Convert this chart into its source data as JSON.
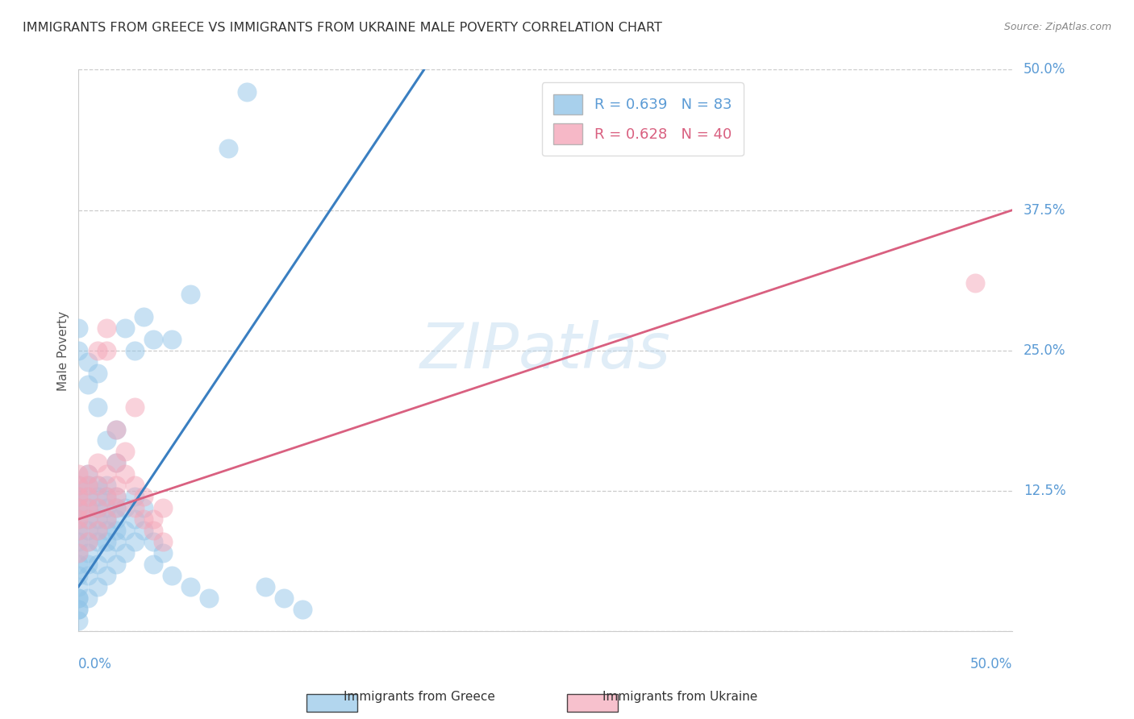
{
  "title": "IMMIGRANTS FROM GREECE VS IMMIGRANTS FROM UKRAINE MALE POVERTY CORRELATION CHART",
  "source": "Source: ZipAtlas.com",
  "ylabel": "Male Poverty",
  "ytick_values": [
    0.0,
    0.125,
    0.25,
    0.375,
    0.5
  ],
  "xlim": [
    0.0,
    0.5
  ],
  "ylim": [
    0.0,
    0.5
  ],
  "greece_color": "#92c5e8",
  "ukraine_color": "#f4a7b9",
  "greece_line_color": "#3a7fc1",
  "ukraine_line_color": "#d96080",
  "greece_line": [
    [
      0.0,
      0.04
    ],
    [
      0.185,
      0.5
    ]
  ],
  "ukraine_line": [
    [
      0.0,
      0.1
    ],
    [
      0.5,
      0.375
    ]
  ],
  "greece_scatter": [
    [
      0.0,
      0.02
    ],
    [
      0.0,
      0.03
    ],
    [
      0.0,
      0.04
    ],
    [
      0.0,
      0.05
    ],
    [
      0.0,
      0.06
    ],
    [
      0.0,
      0.07
    ],
    [
      0.0,
      0.08
    ],
    [
      0.0,
      0.09
    ],
    [
      0.0,
      0.1
    ],
    [
      0.0,
      0.11
    ],
    [
      0.0,
      0.12
    ],
    [
      0.0,
      0.13
    ],
    [
      0.0,
      0.01
    ],
    [
      0.0,
      0.02
    ],
    [
      0.0,
      0.03
    ],
    [
      0.005,
      0.03
    ],
    [
      0.005,
      0.05
    ],
    [
      0.005,
      0.07
    ],
    [
      0.005,
      0.08
    ],
    [
      0.005,
      0.09
    ],
    [
      0.005,
      0.1
    ],
    [
      0.005,
      0.11
    ],
    [
      0.005,
      0.12
    ],
    [
      0.005,
      0.13
    ],
    [
      0.005,
      0.14
    ],
    [
      0.005,
      0.06
    ],
    [
      0.01,
      0.04
    ],
    [
      0.01,
      0.06
    ],
    [
      0.01,
      0.08
    ],
    [
      0.01,
      0.1
    ],
    [
      0.01,
      0.12
    ],
    [
      0.01,
      0.13
    ],
    [
      0.01,
      0.11
    ],
    [
      0.01,
      0.09
    ],
    [
      0.015,
      0.05
    ],
    [
      0.015,
      0.07
    ],
    [
      0.015,
      0.09
    ],
    [
      0.015,
      0.11
    ],
    [
      0.015,
      0.13
    ],
    [
      0.015,
      0.12
    ],
    [
      0.015,
      0.1
    ],
    [
      0.015,
      0.08
    ],
    [
      0.02,
      0.06
    ],
    [
      0.02,
      0.08
    ],
    [
      0.02,
      0.1
    ],
    [
      0.02,
      0.12
    ],
    [
      0.02,
      0.11
    ],
    [
      0.02,
      0.09
    ],
    [
      0.025,
      0.07
    ],
    [
      0.025,
      0.09
    ],
    [
      0.025,
      0.11
    ],
    [
      0.03,
      0.08
    ],
    [
      0.03,
      0.1
    ],
    [
      0.03,
      0.12
    ],
    [
      0.035,
      0.09
    ],
    [
      0.035,
      0.11
    ],
    [
      0.04,
      0.06
    ],
    [
      0.04,
      0.08
    ],
    [
      0.045,
      0.07
    ],
    [
      0.05,
      0.05
    ],
    [
      0.06,
      0.04
    ],
    [
      0.07,
      0.03
    ],
    [
      0.08,
      0.43
    ],
    [
      0.09,
      0.48
    ],
    [
      0.0,
      0.25
    ],
    [
      0.0,
      0.27
    ],
    [
      0.005,
      0.22
    ],
    [
      0.005,
      0.24
    ],
    [
      0.01,
      0.2
    ],
    [
      0.01,
      0.23
    ],
    [
      0.02,
      0.18
    ],
    [
      0.025,
      0.27
    ],
    [
      0.03,
      0.25
    ],
    [
      0.035,
      0.28
    ],
    [
      0.04,
      0.26
    ],
    [
      0.05,
      0.26
    ],
    [
      0.06,
      0.3
    ],
    [
      0.1,
      0.04
    ],
    [
      0.11,
      0.03
    ],
    [
      0.12,
      0.02
    ],
    [
      0.015,
      0.17
    ],
    [
      0.02,
      0.15
    ]
  ],
  "ukraine_scatter": [
    [
      0.0,
      0.07
    ],
    [
      0.0,
      0.09
    ],
    [
      0.0,
      0.11
    ],
    [
      0.0,
      0.12
    ],
    [
      0.0,
      0.13
    ],
    [
      0.0,
      0.14
    ],
    [
      0.0,
      0.1
    ],
    [
      0.005,
      0.08
    ],
    [
      0.005,
      0.1
    ],
    [
      0.005,
      0.12
    ],
    [
      0.005,
      0.14
    ],
    [
      0.005,
      0.13
    ],
    [
      0.005,
      0.11
    ],
    [
      0.01,
      0.09
    ],
    [
      0.01,
      0.11
    ],
    [
      0.01,
      0.13
    ],
    [
      0.01,
      0.15
    ],
    [
      0.01,
      0.25
    ],
    [
      0.015,
      0.1
    ],
    [
      0.015,
      0.12
    ],
    [
      0.015,
      0.14
    ],
    [
      0.015,
      0.25
    ],
    [
      0.015,
      0.27
    ],
    [
      0.02,
      0.11
    ],
    [
      0.02,
      0.13
    ],
    [
      0.02,
      0.15
    ],
    [
      0.02,
      0.18
    ],
    [
      0.02,
      0.12
    ],
    [
      0.025,
      0.14
    ],
    [
      0.025,
      0.16
    ],
    [
      0.03,
      0.11
    ],
    [
      0.03,
      0.13
    ],
    [
      0.03,
      0.2
    ],
    [
      0.035,
      0.12
    ],
    [
      0.035,
      0.1
    ],
    [
      0.04,
      0.1
    ],
    [
      0.04,
      0.09
    ],
    [
      0.045,
      0.11
    ],
    [
      0.045,
      0.08
    ],
    [
      0.48,
      0.31
    ]
  ]
}
